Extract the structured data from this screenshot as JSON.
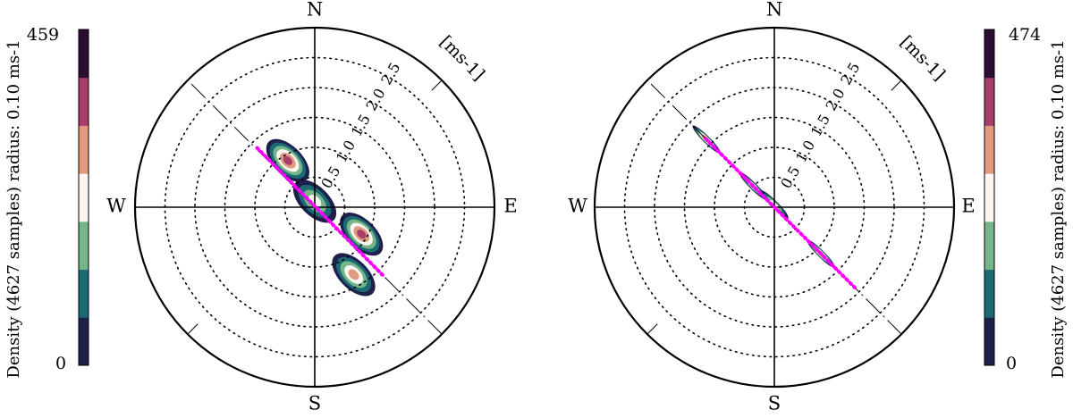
{
  "chart_data": [
    {
      "type": "polar-density",
      "compass": [
        "N",
        "E",
        "S",
        "W"
      ],
      "unit_label": "[ms-1]",
      "radial_ticks": [
        "0.5",
        "1.0",
        "1.5",
        "2.0",
        "2.5"
      ],
      "radial_tick_values": [
        0.5,
        1.0,
        1.5,
        2.0,
        2.5
      ],
      "r_max": 3.0,
      "grid": "dotted",
      "principal_axis_bearing_deg": 135,
      "colorbar": {
        "side": "left",
        "min_label": "0",
        "max_label": "459",
        "label": "Density (4627 samples) radius: 0.10 ms-1",
        "colors": [
          "#1f1f4c",
          "#1b6a73",
          "#76b58a",
          "#fbf6f2",
          "#e09a7e",
          "#a83f6b",
          "#2d0c33"
        ]
      },
      "density_clusters": [
        {
          "bearing_deg": 330,
          "speed": 0.9,
          "peak_level": 5
        },
        {
          "bearing_deg": 120,
          "speed": 0.9,
          "peak_level": 5
        },
        {
          "bearing_deg": 150,
          "speed": 1.3,
          "peak_level": 4
        },
        {
          "bearing_deg": 0,
          "speed": 0.1,
          "peak_level": 3
        }
      ]
    },
    {
      "type": "polar-density",
      "compass": [
        "N",
        "E",
        "S",
        "W"
      ],
      "unit_label": "[ms-1]",
      "radial_ticks": [
        "0.5",
        "1.0",
        "1.5",
        "2.0",
        "2.5"
      ],
      "radial_tick_values": [
        0.5,
        1.0,
        1.5,
        2.0,
        2.5
      ],
      "r_max": 3.0,
      "grid": "dotted",
      "principal_axis_bearing_deg": 135,
      "colorbar": {
        "side": "right",
        "min_label": "0",
        "max_label": "474",
        "label": "Density (4627 samples) radius: 0.10 ms-1",
        "colors": [
          "#1f1f4c",
          "#1b6a73",
          "#76b58a",
          "#fbf6f2",
          "#e09a7e",
          "#a83f6b",
          "#2d0c33"
        ]
      },
      "density_clusters": [
        {
          "bearing_deg": 315,
          "speed": 1.6,
          "peak_level": 5
        },
        {
          "bearing_deg": 315,
          "speed": 0.5,
          "peak_level": 4
        },
        {
          "bearing_deg": 135,
          "speed": 1.1,
          "peak_level": 5
        },
        {
          "bearing_deg": 0,
          "speed": 0.05,
          "peak_level": 3
        }
      ]
    }
  ]
}
